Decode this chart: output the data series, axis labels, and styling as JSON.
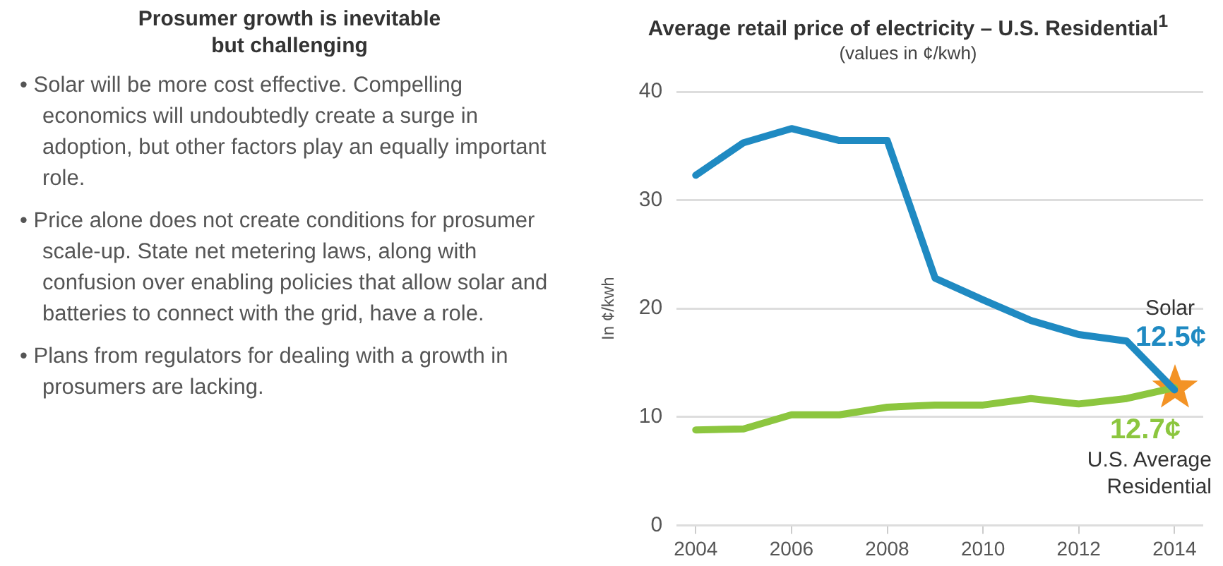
{
  "chart_data": [
    {
      "type": "other",
      "title": "Prosumer growth is inevitable but challenging",
      "annotations": [
        "• Solar will be more cost effective. Compelling economics will undoubtedly create a surge in adoption, but other factors play an equally important role.",
        "• Price alone does not create conditions for prosumer scale-up. State net metering laws, along with confusion over enabling policies that allow solar and batteries to connect with the grid, have a role.",
        "• Plans from regulators for dealing with a growth in prosumers are lacking."
      ]
    },
    {
      "type": "line",
      "title": "Average retail price of electricity – U.S. Residential$^{1}$",
      "subtitle": "(values in ¢/kwh)",
      "ylabel": "In ¢/kwh",
      "x": [
        2004,
        2005,
        2006,
        2007,
        2008,
        2009,
        2010,
        2011,
        2012,
        2013,
        2014
      ],
      "xlim": [
        2003.6,
        2014.6
      ],
      "xticks": [
        2004,
        2006,
        2008,
        2010,
        2012,
        2014
      ],
      "ylim": [
        0,
        40
      ],
      "yticks": [
        0,
        10,
        20,
        30,
        40
      ],
      "grid": "y",
      "legend": false,
      "series": [
        {
          "name": "Solar",
          "color": "#1f8ac2",
          "values": [
            32.3,
            35.3,
            36.6,
            35.5,
            35.5,
            22.8,
            20.8,
            18.9,
            17.6,
            17.0,
            12.5
          ],
          "value_labels": [
            null,
            null,
            null,
            null,
            null,
            null,
            null,
            null,
            null,
            null,
            "12.5¢"
          ]
        },
        {
          "name": "U.S. Average Residential",
          "color": "#8cc63f",
          "values": [
            8.8,
            8.9,
            10.2,
            10.2,
            10.9,
            11.1,
            11.1,
            11.7,
            11.2,
            11.7,
            12.7
          ],
          "value_labels": [
            null,
            null,
            null,
            null,
            null,
            null,
            null,
            null,
            null,
            null,
            "12.7¢"
          ]
        }
      ]
    }
  ]
}
